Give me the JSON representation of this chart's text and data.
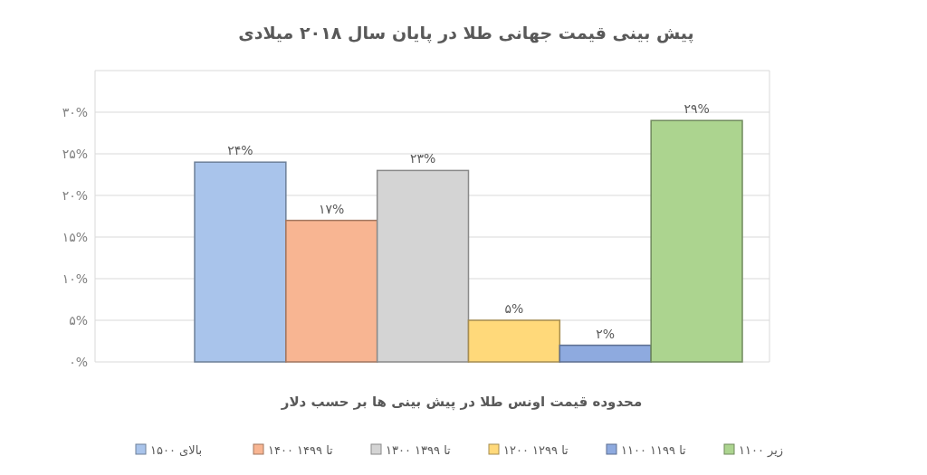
{
  "chart_data": {
    "type": "bar",
    "title": "پیش بینی قیمت جهانی طلا در پایان سال ۲۰۱۸ میلادی",
    "xlabel": "محدوده قیمت اونس طلا در پیش بینی ها بر حسب دلار",
    "categories": [
      null
    ],
    "series": [
      {
        "name": "بالای ۱۵۰۰",
        "color": "#a9c4eb",
        "values": [
          24
        ],
        "value_labels": [
          "۲۴%"
        ]
      },
      {
        "name": "۱۴۰۰ تا ۱۴۹۹",
        "color": "#f8b592",
        "values": [
          17
        ],
        "value_labels": [
          "۱۷%"
        ]
      },
      {
        "name": "۱۳۰۰ تا ۱۳۹۹",
        "color": "#d4d4d4",
        "values": [
          23
        ],
        "value_labels": [
          "۲۳%"
        ]
      },
      {
        "name": "۱۲۰۰ تا ۱۲۹۹",
        "color": "#ffd97a",
        "values": [
          5
        ],
        "value_labels": [
          "۵%"
        ]
      },
      {
        "name": "۱۱۰۰ تا ۱۱۹۹",
        "color": "#8eaadf",
        "values": [
          2
        ],
        "value_labels": [
          "۲%"
        ]
      },
      {
        "name": "زیر ۱۱۰۰",
        "color": "#acd48f",
        "values": [
          29
        ],
        "value_labels": [
          "۲۹%"
        ]
      }
    ],
    "ylim": [
      0,
      35
    ],
    "yticks": [
      {
        "value": 0,
        "label": "۰%"
      },
      {
        "value": 5,
        "label": "۵%"
      },
      {
        "value": 10,
        "label": "۱۰%"
      },
      {
        "value": 15,
        "label": "۱۵%"
      },
      {
        "value": 20,
        "label": "۲۰%"
      },
      {
        "value": 25,
        "label": "۲۵%"
      },
      {
        "value": 30,
        "label": "۳۰%"
      }
    ],
    "grid": "y",
    "legend": "bottom",
    "tick_labels": "y"
  }
}
